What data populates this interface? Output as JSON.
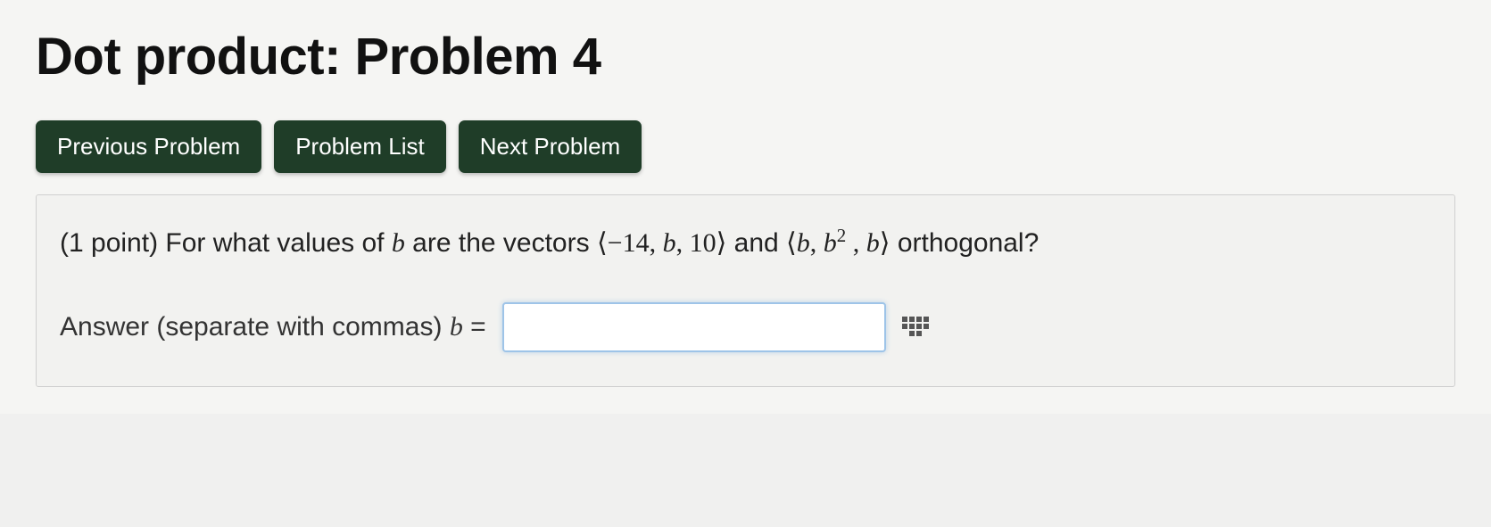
{
  "title": "Dot product: Problem 4",
  "nav": {
    "prev": "Previous Problem",
    "list": "Problem List",
    "next": "Next Problem"
  },
  "problem": {
    "points_prefix": "(1 point) ",
    "q1": "For what values of ",
    "var_b": "b",
    "q2": " are the vectors ",
    "vec1_open": "⟨",
    "vec1_a": "−14",
    "vec1_sep1": ", ",
    "vec1_b": "b",
    "vec1_sep2": ", ",
    "vec1_c": "10",
    "vec1_close": "⟩",
    "q3": " and ",
    "vec2_open": "⟨",
    "vec2_a": "b",
    "vec2_sep1": ", ",
    "vec2_b": "b",
    "vec2_b_exp": "2",
    "vec2_sep2": " , ",
    "vec2_c": "b",
    "vec2_close": "⟩",
    "q4": " orthogonal?"
  },
  "answer": {
    "label_pre": "Answer (separate with commas) ",
    "var_b": "b",
    "eq": " = ",
    "value": "",
    "placeholder": ""
  },
  "colors": {
    "button_bg": "#1f3d28",
    "button_text": "#ffffff",
    "page_bg": "#f5f5f3",
    "box_border": "#d0d0d0",
    "input_border": "#9ec4e8",
    "text": "#222222"
  }
}
